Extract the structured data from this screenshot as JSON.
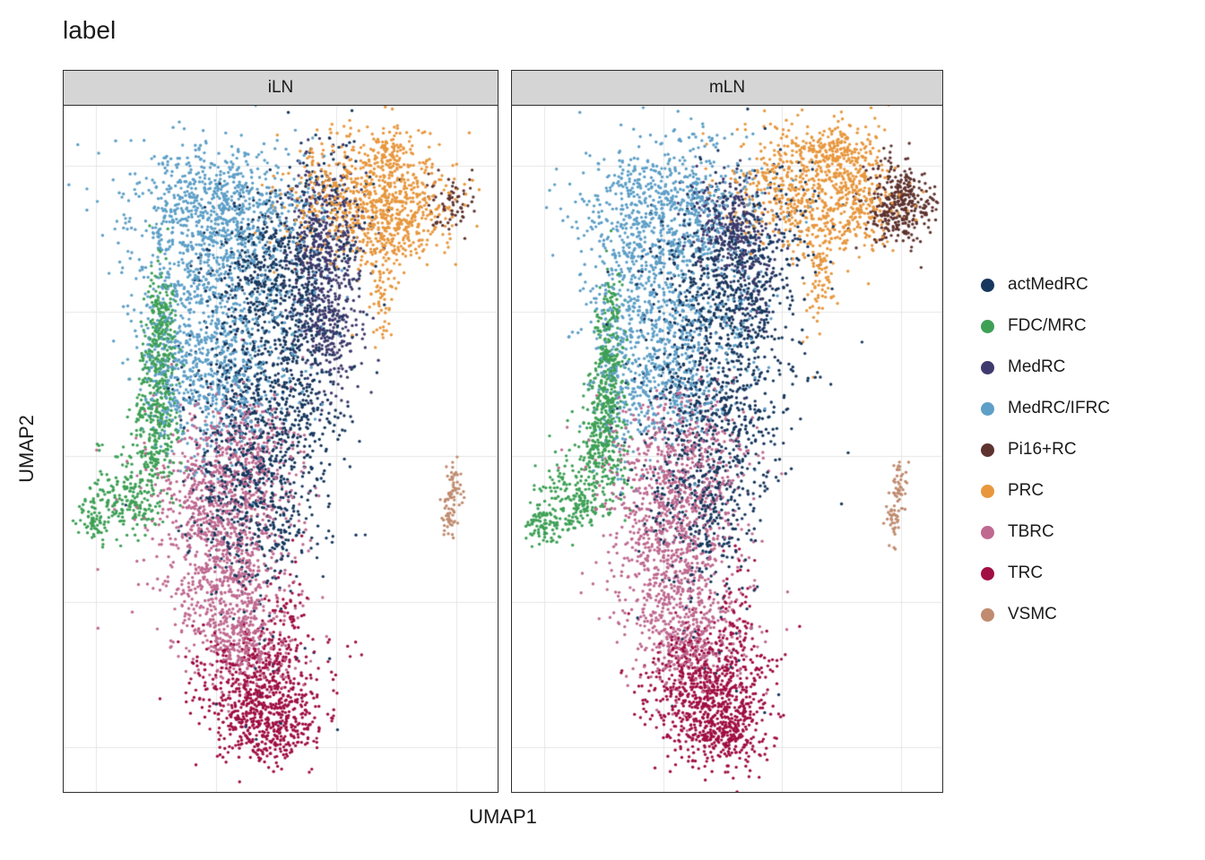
{
  "title": "label",
  "axes": {
    "x": "UMAP1",
    "y": "UMAP2"
  },
  "chart_data": {
    "type": "scatter",
    "title": "label",
    "xlabel": "UMAP1",
    "ylabel": "UMAP2",
    "legend_position": "right",
    "grid": true,
    "axis_tick_labels": "none",
    "facets": [
      "iLN",
      "mLN"
    ],
    "point_radius": 1.7,
    "gridline_color": "#E6E6E6",
    "gridlines": {
      "x": [
        0.075,
        0.352,
        0.628,
        0.905
      ],
      "y": [
        0.088,
        0.3,
        0.511,
        0.723,
        0.935
      ]
    },
    "clusters": [
      {
        "label": "actMedRC",
        "color": "#17375E",
        "blobs": {
          "iLN": [
            [
              0.49,
              0.235,
              0.08,
              0.059,
              450
            ],
            [
              0.47,
              0.43,
              0.09,
              0.09,
              800
            ],
            [
              0.44,
              0.575,
              0.07,
              0.059,
              350
            ],
            [
              0.62,
              0.13,
              0.06,
              0.05,
              80
            ],
            [
              0.47,
              0.69,
              0.07,
              0.1,
              60
            ],
            [
              0.55,
              0.3,
              0.03,
              0.05,
              60
            ]
          ],
          "mLN": [
            [
              0.498,
              0.235,
              0.083,
              0.059,
              400
            ],
            [
              0.477,
              0.405,
              0.093,
              0.092,
              700
            ],
            [
              0.446,
              0.575,
              0.073,
              0.059,
              300
            ],
            [
              0.622,
              0.144,
              0.06,
              0.05,
              70
            ],
            [
              0.477,
              0.69,
              0.07,
              0.1,
              50
            ],
            [
              0.55,
              0.3,
              0.03,
              0.05,
              50
            ]
          ]
        }
      },
      {
        "label": "FDC/MRC",
        "color": "#3DA055",
        "blobs": {
          "iLN": [
            [
              0.222,
              0.36,
              0.02,
              0.055,
              260
            ],
            [
              0.21,
              0.47,
              0.025,
              0.046,
              220
            ],
            [
              0.145,
              0.575,
              0.05,
              0.026,
              150
            ],
            [
              0.072,
              0.608,
              0.02,
              0.015,
              60
            ],
            [
              0.185,
              0.523,
              0.045,
              0.04,
              80
            ],
            [
              0.225,
              0.3,
              0.012,
              0.025,
              40
            ]
          ],
          "mLN": [
            [
              0.228,
              0.36,
              0.02,
              0.055,
              240
            ],
            [
              0.212,
              0.47,
              0.025,
              0.046,
              260
            ],
            [
              0.145,
              0.575,
              0.05,
              0.026,
              170
            ],
            [
              0.073,
              0.608,
              0.02,
              0.015,
              70
            ],
            [
              0.185,
              0.523,
              0.045,
              0.04,
              80
            ]
          ]
        }
      },
      {
        "label": "MedRC",
        "color": "#3F3A6D",
        "blobs": {
          "iLN": [
            [
              0.6,
              0.195,
              0.05,
              0.055,
              380
            ],
            [
              0.61,
              0.31,
              0.038,
              0.055,
              280
            ]
          ],
          "mLN": [
            [
              0.508,
              0.176,
              0.046,
              0.035,
              300
            ],
            [
              0.565,
              0.26,
              0.025,
              0.045,
              60
            ]
          ]
        }
      },
      {
        "label": "MedRC/IFRC",
        "color": "#5D9FC7",
        "blobs": {
          "iLN": [
            [
              0.36,
              0.15,
              0.105,
              0.05,
              700
            ],
            [
              0.3,
              0.275,
              0.072,
              0.078,
              500
            ],
            [
              0.36,
              0.415,
              0.062,
              0.06,
              350
            ],
            [
              0.45,
              0.3,
              0.08,
              0.08,
              200
            ],
            [
              0.24,
              0.4,
              0.03,
              0.06,
              150
            ]
          ],
          "mLN": [
            [
              0.363,
              0.144,
              0.104,
              0.05,
              650
            ],
            [
              0.311,
              0.275,
              0.073,
              0.078,
              450
            ],
            [
              0.363,
              0.405,
              0.062,
              0.059,
              300
            ],
            [
              0.456,
              0.3,
              0.08,
              0.08,
              180
            ],
            [
              0.25,
              0.4,
              0.03,
              0.06,
              130
            ]
          ]
        }
      },
      {
        "label": "Pi16+RC",
        "color": "#5E322F",
        "blobs": {
          "iLN": [
            [
              0.895,
              0.144,
              0.026,
              0.021,
              60
            ],
            [
              0.858,
              0.12,
              0.015,
              0.01,
              8
            ]
          ],
          "mLN": [
            [
              0.902,
              0.144,
              0.041,
              0.03,
              350
            ]
          ]
        }
      },
      {
        "label": "PRC",
        "color": "#E8973D",
        "blobs": {
          "iLN": [
            [
              0.69,
              0.135,
              0.09,
              0.046,
              650
            ],
            [
              0.79,
              0.168,
              0.05,
              0.033,
              200
            ],
            [
              0.75,
              0.072,
              0.026,
              0.02,
              80
            ],
            [
              0.735,
              0.255,
              0.015,
              0.048,
              80
            ]
          ],
          "mLN": [
            [
              0.695,
              0.118,
              0.093,
              0.046,
              650
            ],
            [
              0.757,
              0.065,
              0.04,
              0.02,
              120
            ],
            [
              0.716,
              0.235,
              0.02,
              0.05,
              100
            ],
            [
              0.82,
              0.15,
              0.032,
              0.035,
              120
            ]
          ]
        }
      },
      {
        "label": "TBRC",
        "color": "#BF6990",
        "blobs": {
          "iLN": [
            [
              0.36,
              0.55,
              0.082,
              0.059,
              550
            ],
            [
              0.37,
              0.68,
              0.072,
              0.065,
              600
            ],
            [
              0.42,
              0.784,
              0.058,
              0.039,
              300
            ],
            [
              0.43,
              0.497,
              0.06,
              0.05,
              150
            ]
          ],
          "mLN": [
            [
              0.363,
              0.55,
              0.082,
              0.059,
              500
            ],
            [
              0.373,
              0.68,
              0.072,
              0.065,
              550
            ],
            [
              0.425,
              0.784,
              0.058,
              0.039,
              280
            ],
            [
              0.436,
              0.497,
              0.06,
              0.05,
              120
            ]
          ]
        }
      },
      {
        "label": "TRC",
        "color": "#A00E43",
        "blobs": {
          "iLN": [
            [
              0.45,
              0.837,
              0.072,
              0.039,
              450
            ],
            [
              0.47,
              0.905,
              0.058,
              0.029,
              350
            ],
            [
              0.51,
              0.745,
              0.022,
              0.05,
              60
            ]
          ],
          "mLN": [
            [
              0.456,
              0.837,
              0.072,
              0.039,
              500
            ],
            [
              0.477,
              0.908,
              0.058,
              0.029,
              400
            ],
            [
              0.52,
              0.745,
              0.022,
              0.05,
              70
            ]
          ]
        }
      },
      {
        "label": "VSMC",
        "color": "#C08B6F",
        "blobs": {
          "iLN": [
            [
              0.888,
              0.6,
              0.008,
              0.018,
              40
            ],
            [
              0.9,
              0.553,
              0.008,
              0.02,
              40
            ]
          ],
          "mLN": [
            [
              0.886,
              0.601,
              0.008,
              0.018,
              40
            ],
            [
              0.9,
              0.553,
              0.008,
              0.02,
              40
            ]
          ]
        }
      }
    ]
  }
}
